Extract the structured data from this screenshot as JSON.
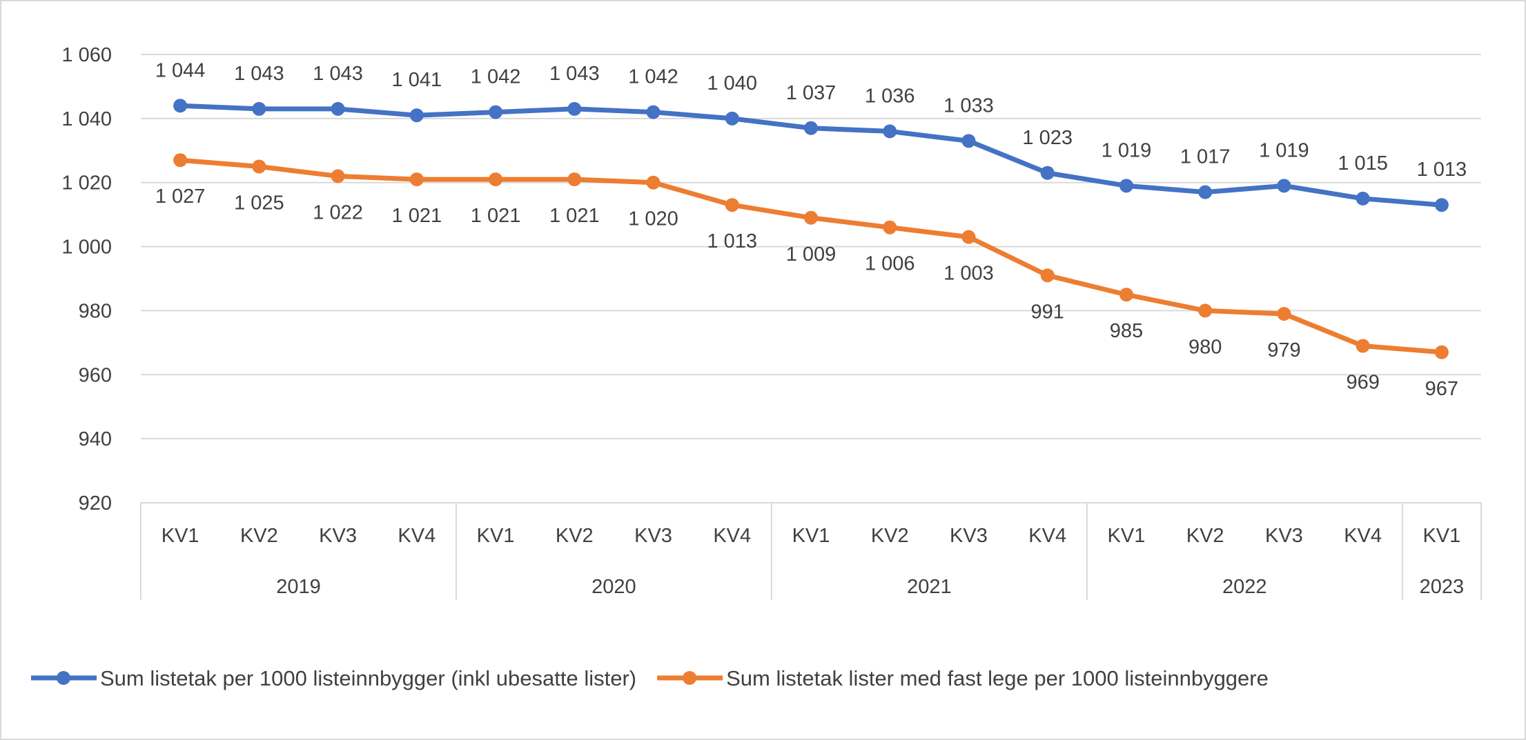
{
  "chart_data": {
    "type": "line",
    "title": "",
    "xlabel": "",
    "ylabel": "",
    "ylim": [
      920,
      1060
    ],
    "yticks": [
      920,
      940,
      960,
      980,
      1000,
      1020,
      1040,
      1060
    ],
    "ytick_labels": [
      "920",
      "940",
      "960",
      "980",
      "1 000",
      "1 020",
      "1 040",
      "1 060"
    ],
    "grid": "horizontal",
    "legend_position": "bottom",
    "categories": [
      "KV1",
      "KV2",
      "KV3",
      "KV4",
      "KV1",
      "KV2",
      "KV3",
      "KV4",
      "KV1",
      "KV2",
      "KV3",
      "KV4",
      "KV1",
      "KV2",
      "KV3",
      "KV4",
      "KV1"
    ],
    "groups": [
      {
        "label": "2019",
        "count": 4
      },
      {
        "label": "2020",
        "count": 4
      },
      {
        "label": "2021",
        "count": 4
      },
      {
        "label": "2022",
        "count": 4
      },
      {
        "label": "2023",
        "count": 1
      }
    ],
    "series": [
      {
        "name": "Sum listetak per 1000 listeinnbygger (inkl ubesatte lister)",
        "color": "#4472C4",
        "label_position": "above",
        "values": [
          1044,
          1043,
          1043,
          1041,
          1042,
          1043,
          1042,
          1040,
          1037,
          1036,
          1033,
          1023,
          1019,
          1017,
          1019,
          1015,
          1013
        ],
        "labels": [
          "1 044",
          "1 043",
          "1 043",
          "1 041",
          "1 042",
          "1 043",
          "1 042",
          "1 040",
          "1 037",
          "1 036",
          "1 033",
          "1 023",
          "1 019",
          "1 017",
          "1 019",
          "1 015",
          "1 013"
        ]
      },
      {
        "name": "Sum listetak lister med fast lege per 1000 listeinnbyggere",
        "color": "#ED7D31",
        "label_position": "below",
        "values": [
          1027,
          1025,
          1022,
          1021,
          1021,
          1021,
          1020,
          1013,
          1009,
          1006,
          1003,
          991,
          985,
          980,
          979,
          969,
          967
        ],
        "labels": [
          "1 027",
          "1 025",
          "1 022",
          "1 021",
          "1 021",
          "1 021",
          "1 020",
          "1 013",
          "1 009",
          "1 006",
          "1 003",
          "991",
          "985",
          "980",
          "979",
          "969",
          "967"
        ]
      }
    ]
  }
}
